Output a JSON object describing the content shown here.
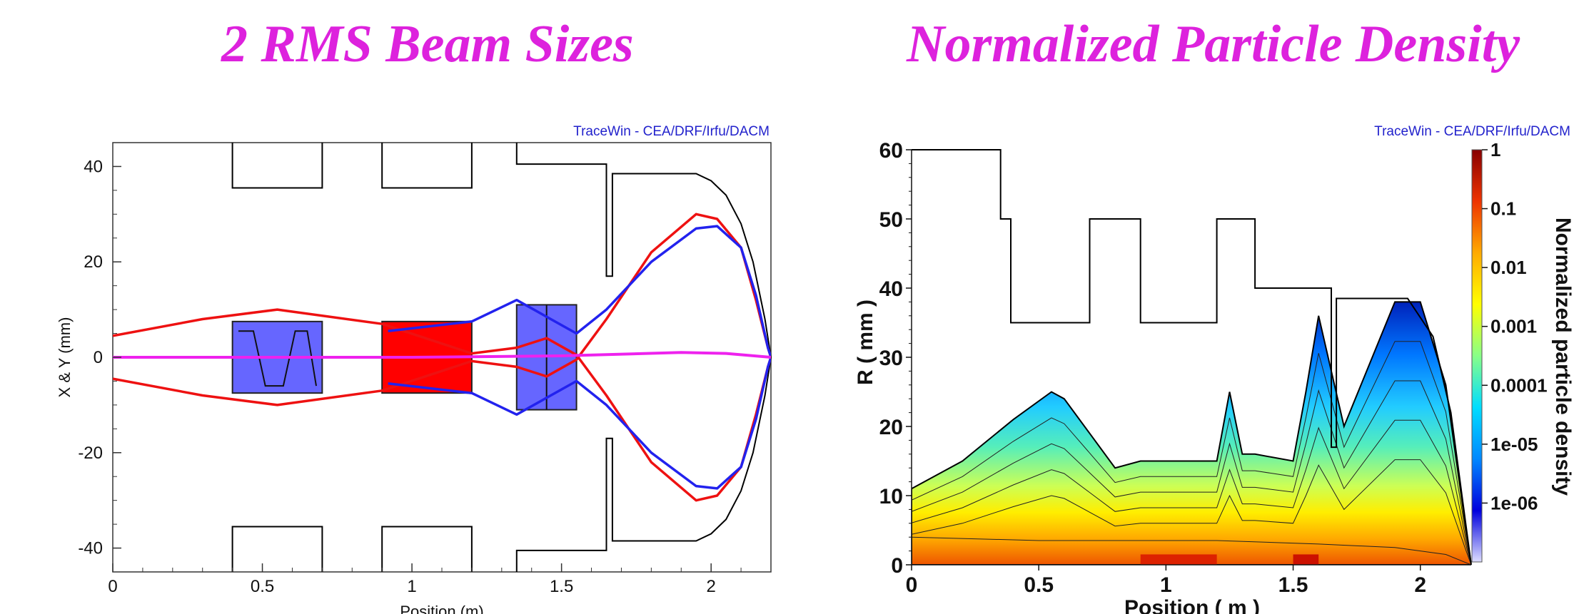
{
  "titles": {
    "left": "2 RMS Beam Sizes",
    "right": "Normalized Particle Density"
  },
  "colors": {
    "title": "#dd22dd",
    "x_envelope": "#2222ee",
    "y_envelope": "#ee1111",
    "centroid": "#ee22ee",
    "aperture": "#000000",
    "quad": "#6666ff",
    "solenoid": "#ff0000",
    "credit": "#2222cc"
  },
  "chart_data": [
    {
      "type": "line",
      "title": "2 RMS Beam Sizes",
      "credit": "TraceWin - CEA/DRF/Irfu/DACM",
      "xlabel": "Position (m)",
      "ylabel": "X & Y (mm)",
      "xlim": [
        0,
        2.2
      ],
      "ylim": [
        -45,
        45
      ],
      "x_ticks": [
        0,
        0.5,
        1,
        1.5,
        2
      ],
      "x_tick_labels": [
        "0",
        "0.5",
        "1",
        "1.5",
        "2"
      ],
      "y_ticks": [
        -40,
        -20,
        0,
        20,
        40
      ],
      "y_tick_labels": [
        "-40",
        "-20",
        "0",
        "20",
        "40"
      ],
      "grid": false,
      "series": [
        {
          "key": "y_envelope",
          "x": [
            0,
            0.3,
            0.55,
            0.9,
            1.2,
            1.35,
            1.45,
            1.55,
            1.65,
            1.8,
            1.95,
            2.02,
            2.1,
            2.15,
            2.19,
            2.2
          ],
          "y": [
            4.5,
            8,
            10,
            7,
            0.8,
            2,
            4,
            0.5,
            -8,
            -22,
            -30,
            -29,
            -23,
            -12,
            -2,
            0
          ]
        },
        {
          "key": "y_envelope_mirror",
          "x": [
            0,
            0.3,
            0.55,
            0.9,
            1.2,
            1.35,
            1.45,
            1.55,
            1.65,
            1.8,
            1.95,
            2.02,
            2.1,
            2.15,
            2.19,
            2.2
          ],
          "y": [
            -4.5,
            -8,
            -10,
            -7,
            -0.8,
            -2,
            -4,
            -0.5,
            8,
            22,
            30,
            29,
            23,
            12,
            2,
            0
          ]
        },
        {
          "key": "x_envelope",
          "x": [
            0.92,
            1.2,
            1.35,
            1.55,
            1.65,
            1.8,
            1.95,
            2.02,
            2.1,
            2.15,
            2.19,
            2.2
          ],
          "y": [
            5.5,
            7.5,
            12,
            5,
            10,
            20,
            27,
            27.5,
            23,
            13,
            2,
            0
          ]
        },
        {
          "key": "x_envelope_mirror",
          "x": [
            0.92,
            1.2,
            1.35,
            1.55,
            1.65,
            1.8,
            1.95,
            2.02,
            2.1,
            2.15,
            2.19,
            2.2
          ],
          "y": [
            -5.5,
            -7.5,
            -12,
            -5,
            -10,
            -20,
            -27,
            -27.5,
            -23,
            -13,
            -2,
            0
          ]
        },
        {
          "key": "centroid",
          "x": [
            0,
            0.5,
            1,
            1.5,
            1.9,
            2.05,
            2.2
          ],
          "y": [
            0,
            0,
            0,
            0.3,
            1,
            0.8,
            0
          ]
        }
      ],
      "elements": [
        {
          "kind": "quad",
          "x0": 0.4,
          "x1": 0.7,
          "ymin": -7.5,
          "ymax": 7.5
        },
        {
          "kind": "solenoid",
          "x0": 0.9,
          "x1": 1.2,
          "ymin": -7.5,
          "ymax": 7.5
        },
        {
          "kind": "quad",
          "x0": 1.35,
          "x1": 1.55,
          "ymin": -11,
          "ymax": 11
        }
      ]
    },
    {
      "type": "heatmap",
      "title": "Normalized Particle Density",
      "credit": "TraceWin - CEA/DRF/Irfu/DACM",
      "xlabel": "Position ( m )",
      "ylabel": "R  ( mm )",
      "xlim": [
        0,
        2.2
      ],
      "ylim": [
        0,
        60
      ],
      "x_ticks": [
        0,
        0.5,
        1,
        1.5,
        2
      ],
      "x_tick_labels": [
        "0",
        "0.5",
        "1",
        "1.5",
        "2"
      ],
      "y_ticks": [
        0,
        10,
        20,
        30,
        40,
        50,
        60
      ],
      "y_tick_labels": [
        "0",
        "10",
        "20",
        "30",
        "40",
        "50",
        "60"
      ],
      "colorbar": {
        "label": "Normalized particle density",
        "scale": "log",
        "range": [
          1e-07,
          1
        ],
        "ticks": [
          1,
          0.1,
          0.01,
          0.001,
          0.0001,
          1e-05,
          1e-06
        ],
        "tick_labels": [
          "1",
          "0.1",
          "0.01",
          "0.001",
          "0.0001",
          "1e-05",
          "1e-06"
        ],
        "colors": [
          "#ddddff",
          "#0000dd",
          "#0088ff",
          "#00ddff",
          "#88ff88",
          "#ffff00",
          "#ffaa00",
          "#ee3300",
          "#880000"
        ]
      },
      "beam_outer_radius": {
        "x": [
          0,
          0.2,
          0.4,
          0.55,
          0.6,
          0.7,
          0.8,
          0.9,
          1.2,
          1.25,
          1.3,
          1.35,
          1.5,
          1.55,
          1.6,
          1.7,
          1.9,
          2.0,
          2.1,
          2.18,
          2.2
        ],
        "y": [
          11,
          15,
          21,
          25,
          24,
          19,
          14,
          15,
          15,
          25,
          16,
          16,
          15,
          25,
          36,
          20,
          38,
          38,
          26,
          5,
          0
        ]
      },
      "core_radius": {
        "x": [
          0,
          0.5,
          0.7,
          1.2,
          1.6,
          1.9,
          2.1,
          2.2
        ],
        "y": [
          4,
          3.5,
          3.5,
          3.5,
          3,
          2.5,
          1.5,
          0
        ]
      }
    }
  ]
}
